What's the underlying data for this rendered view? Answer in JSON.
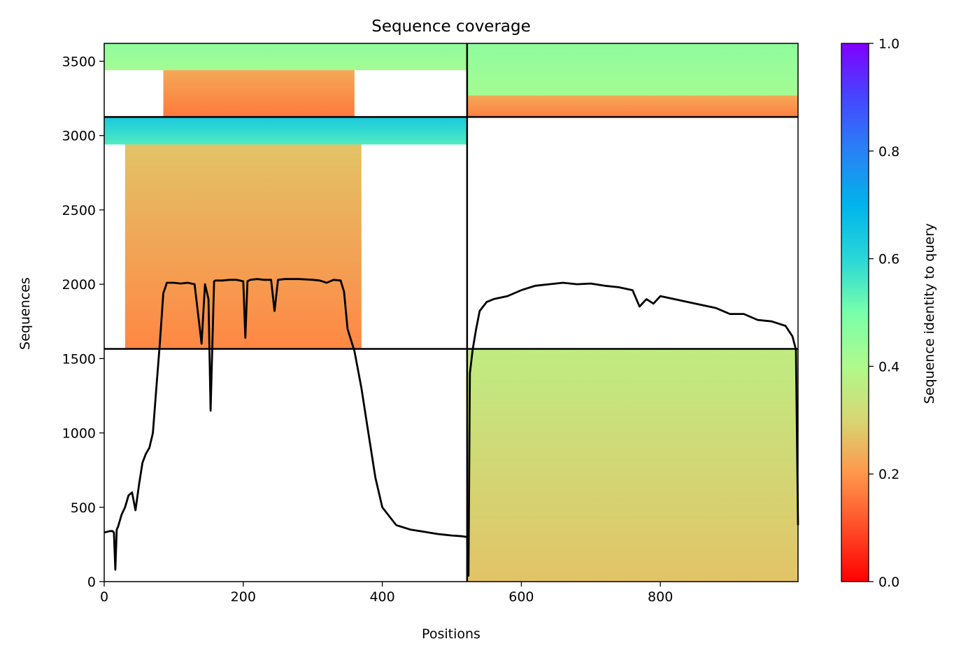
{
  "chart_data": {
    "type": "heatmap",
    "title": "Sequence coverage",
    "xlabel": "Positions",
    "ylabel": "Sequences",
    "xlim": [
      0,
      998
    ],
    "ylim": [
      0,
      3620
    ],
    "x_ticks": [
      0,
      200,
      400,
      600,
      800
    ],
    "y_ticks": [
      0,
      500,
      1000,
      1500,
      2000,
      2500,
      3000,
      3500
    ],
    "colorbar": {
      "label": "Sequence identity to query",
      "range": [
        0.0,
        1.0
      ],
      "ticks": [
        "0.0",
        "0.2",
        "0.4",
        "0.6",
        "0.8",
        "1.0"
      ],
      "colormap": "rainbow_r"
    },
    "dividers": {
      "x": [
        522
      ],
      "y": [
        1565,
        3125
      ]
    },
    "blocks": [
      {
        "x": [
          0,
          522
        ],
        "y": [
          3440,
          3620
        ],
        "identity_bottom": 0.42,
        "identity_top": 0.46
      },
      {
        "x": [
          85,
          360
        ],
        "y": [
          3125,
          3440
        ],
        "identity_bottom": 0.16,
        "identity_top": 0.23
      },
      {
        "x": [
          522,
          998
        ],
        "y": [
          3270,
          3620
        ],
        "identity_bottom": 0.42,
        "identity_top": 0.46
      },
      {
        "x": [
          522,
          998
        ],
        "y": [
          3125,
          3270
        ],
        "identity_bottom": 0.17,
        "identity_top": 0.23
      },
      {
        "x": [
          0,
          522
        ],
        "y": [
          2940,
          3125
        ],
        "identity_bottom": 0.55,
        "identity_top": 0.64
      },
      {
        "x": [
          30,
          370
        ],
        "y": [
          1565,
          2940
        ],
        "identity_bottom": 0.18,
        "identity_top": 0.27
      },
      {
        "x": [
          522,
          998
        ],
        "y": [
          0,
          1565
        ],
        "identity_bottom": 0.27,
        "identity_top": 0.36
      }
    ],
    "series": [
      {
        "type": "line",
        "color": "#000000",
        "x": [
          0,
          8,
          12,
          14,
          16,
          18,
          20,
          25,
          30,
          35,
          40,
          45,
          50,
          55,
          60,
          65,
          70,
          75,
          80,
          85,
          88,
          90,
          100,
          110,
          120,
          130,
          135,
          140,
          145,
          150,
          153,
          155,
          158,
          160,
          170,
          180,
          190,
          200,
          203,
          206,
          210,
          220,
          230,
          240,
          245,
          250,
          260,
          280,
          300,
          310,
          320,
          330,
          340,
          345,
          350,
          360,
          370,
          380,
          390,
          400,
          420,
          440,
          460,
          480,
          500,
          515,
          522,
          524,
          526,
          530,
          535,
          540,
          550,
          560,
          580,
          600,
          620,
          640,
          660,
          680,
          700,
          720,
          740,
          760,
          770,
          780,
          790,
          800,
          820,
          840,
          860,
          880,
          900,
          920,
          940,
          960,
          980,
          990,
          995,
          998
        ],
        "y": [
          330,
          340,
          340,
          330,
          80,
          350,
          370,
          450,
          500,
          580,
          600,
          480,
          650,
          800,
          860,
          900,
          1000,
          1300,
          1600,
          1940,
          1980,
          2010,
          2010,
          2005,
          2010,
          2000,
          1800,
          1600,
          2000,
          1900,
          1150,
          1500,
          2020,
          2025,
          2025,
          2030,
          2030,
          2020,
          1640,
          2020,
          2030,
          2035,
          2030,
          2030,
          1820,
          2030,
          2035,
          2035,
          2030,
          2025,
          2010,
          2030,
          2025,
          1950,
          1700,
          1550,
          1300,
          1000,
          700,
          500,
          380,
          350,
          335,
          320,
          310,
          305,
          300,
          40,
          1400,
          1560,
          1700,
          1820,
          1880,
          1900,
          1920,
          1960,
          1990,
          2000,
          2010,
          2000,
          2005,
          1990,
          1980,
          1960,
          1850,
          1900,
          1870,
          1920,
          1900,
          1880,
          1860,
          1840,
          1800,
          1800,
          1760,
          1750,
          1720,
          1650,
          1560,
          380
        ]
      }
    ]
  }
}
